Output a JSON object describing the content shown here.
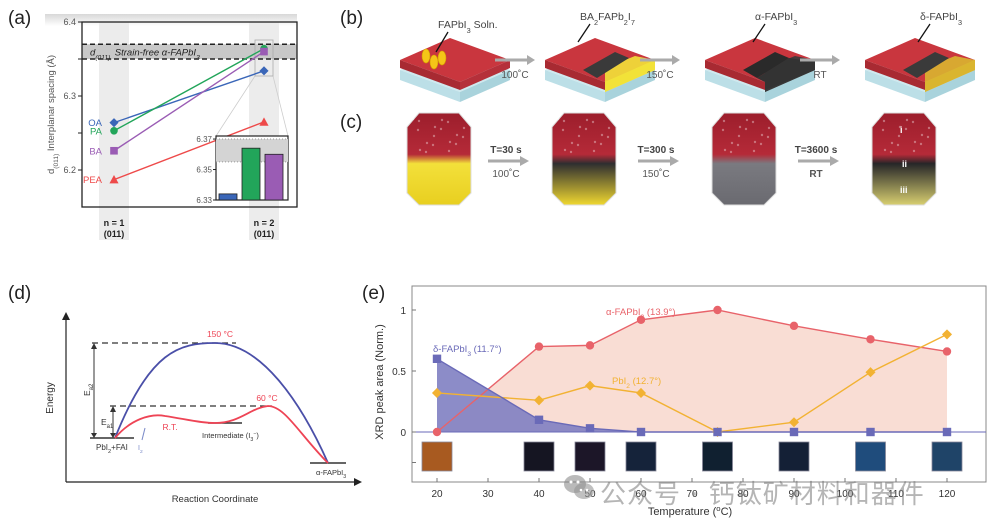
{
  "panel_labels": {
    "a": "(a)",
    "b": "(b)",
    "c": "(c)",
    "d": "(d)",
    "e": "(e)"
  },
  "chart_data": [
    {
      "id": "a",
      "type": "line",
      "title": "",
      "ylabel": "d(011) Interplanar spacing (Å)",
      "ylabel_main": "Interplanar spacing (Å)",
      "ylabel_sub": "d(011)",
      "ylim": [
        6.15,
        6.4
      ],
      "yticks": [
        6.2,
        6.3,
        6.4
      ],
      "ytick_labels": [
        "6.2",
        "6.3",
        "6.4"
      ],
      "categories": [
        "n = 1\n(011)",
        "n = 2\n(011)"
      ],
      "cat_line1": [
        "n = 1",
        "n = 2"
      ],
      "cat_line2": [
        "(011)",
        "(011)"
      ],
      "band": {
        "label": "Strain-free α-FAPbI3",
        "label_main": "Strain-free α-FAPbI",
        "label_prefix": "d",
        "label_sub": "(011),",
        "range": [
          6.35,
          6.37
        ]
      },
      "series": [
        {
          "name": "OA",
          "color": "#3a66b8",
          "marker": "diamond",
          "values": [
            6.264,
            6.334
          ]
        },
        {
          "name": "PA",
          "color": "#22a55a",
          "marker": "circle",
          "values": [
            6.253,
            6.364
          ]
        },
        {
          "name": "BA",
          "color": "#9a5cb4",
          "marker": "square",
          "values": [
            6.226,
            6.36
          ]
        },
        {
          "name": "PEA",
          "color": "#ee4a4a",
          "marker": "triangle",
          "values": [
            6.187,
            6.265
          ]
        }
      ],
      "inset": {
        "type": "bar",
        "ylim": [
          6.33,
          6.37
        ],
        "yticks": [
          6.33,
          6.35,
          6.37
        ],
        "ytick_labels": [
          "6.33",
          "6.35",
          "6.37"
        ],
        "band": [
          6.355,
          6.37
        ],
        "bars": [
          {
            "name": "OA",
            "value": 6.334,
            "color": "#3a66b8"
          },
          {
            "name": "PA",
            "value": 6.364,
            "color": "#22a55a"
          },
          {
            "name": "BA",
            "value": 6.36,
            "color": "#9a5cb4"
          }
        ]
      }
    },
    {
      "id": "d",
      "type": "line",
      "title": "",
      "xlabel": "Reaction Coordinate",
      "ylabel": "Energy",
      "annotations": {
        "high_temp": "150 °C",
        "mid_temp": "60 °C",
        "rt": "R.T.",
        "ea2": "E",
        "ea2_sub": "a2",
        "ea1": "E",
        "ea1_sub": "a1",
        "start": "PbI",
        "start_sub": "2",
        "start_suffix": "+FAI",
        "intermediate": "Intermediate (I",
        "intermediate_sub": "3",
        "intermediate_sup": "−",
        "intermediate_close": ")",
        "end": "α-FAPbI",
        "end_sub": "3",
        "arrow_label": "I",
        "arrow_label_sub": "2"
      },
      "series": [
        {
          "name": "150 °C pathway",
          "color": "#4a4fa8"
        },
        {
          "name": "R.T. / 60 °C pathway",
          "color": "#ee4455"
        }
      ]
    },
    {
      "id": "e",
      "type": "area",
      "title": "",
      "xlabel": "Temperature (°C)",
      "xlabel_text": "Temperature (",
      "xlabel_sup": "o",
      "xlabel_end": "C)",
      "ylabel": "XRD peak area (Norm.)",
      "xlim": [
        15,
        125
      ],
      "ylim": [
        -0.4,
        1.15
      ],
      "xticks": [
        20,
        30,
        40,
        50,
        60,
        70,
        80,
        90,
        100,
        110,
        120
      ],
      "xtick_labels": [
        "20",
        "30",
        "40",
        "50",
        "60",
        "70",
        "80",
        "90",
        "100",
        "110",
        "120"
      ],
      "yticks": [
        0,
        0.5,
        1
      ],
      "ytick_labels": [
        "0",
        "0.5",
        "1"
      ],
      "x": [
        20,
        40,
        50,
        60,
        75,
        90,
        105,
        120
      ],
      "series": [
        {
          "name": "α-FAPbI3 (13.9°)",
          "label_main": "α-FAPbI",
          "label_sub": "3",
          "label_tail": " (13.9°)",
          "color": "#e8636a",
          "fill": "#f8d9cf",
          "marker": "circle",
          "values": [
            0,
            0.7,
            0.71,
            0.92,
            1.0,
            0.87,
            0.76,
            0.66
          ]
        },
        {
          "name": "PbI2 (12.7°)",
          "label_main": "PbI",
          "label_sub": "2",
          "label_tail": " (12.7°)",
          "color": "#f2b233",
          "marker": "diamond",
          "values": [
            0.32,
            0.26,
            0.38,
            0.32,
            0,
            0.08,
            0.49,
            0.8
          ]
        },
        {
          "name": "δ-FAPbI3 (11.7°)",
          "label_main": "δ-FAPbI",
          "label_sub": "3",
          "label_tail": " (11.7°)",
          "color": "#6a6ab8",
          "fill": "#7f7fc2",
          "marker": "square",
          "values": [
            0.6,
            0.1,
            0.03,
            0,
            0,
            0,
            0,
            0
          ]
        }
      ],
      "film_swatches": [
        {
          "x": 20,
          "color": "#a85a20"
        },
        {
          "x": 40,
          "color": "#151522"
        },
        {
          "x": 50,
          "color": "#1c1628"
        },
        {
          "x": 60,
          "color": "#15233a"
        },
        {
          "x": 75,
          "color": "#102030"
        },
        {
          "x": 90,
          "color": "#142036"
        },
        {
          "x": 105,
          "color": "#1f4c7c"
        },
        {
          "x": 120,
          "color": "#1f4468"
        }
      ]
    }
  ],
  "schematic_b": {
    "steps": [
      {
        "label_main": "FAPbI",
        "label_sub": "3",
        "label_tail": " Soln.",
        "top": "#c9363e",
        "front": "transparent",
        "droplets": true
      },
      {
        "label_main": "BA",
        "label_sub": "2",
        "label_mid": "FAPb",
        "label_sub2": "2",
        "label_mid2": "I",
        "label_sub3": "7",
        "top": "#c9363e",
        "front": "#f2e238",
        "dark": true
      },
      {
        "label_main": "α-FAPbI",
        "label_sub": "3",
        "top": "#c9363e",
        "front": "#3a3a3a",
        "dark": true,
        "alldark": true
      },
      {
        "label_main": "δ-FAPbI",
        "label_sub": "3",
        "top": "#c9363e",
        "front": "#d9b530",
        "dark": true
      }
    ],
    "arrows": [
      {
        "top": "",
        "bottom": "100˚C"
      },
      {
        "top": "",
        "bottom": "150˚C"
      },
      {
        "top": "",
        "bottom": "RT"
      }
    ]
  },
  "photos_c": {
    "arrows": [
      {
        "top": "T=30 s",
        "bottom": "100˚C"
      },
      {
        "top": "T=300 s",
        "bottom": "150˚C"
      },
      {
        "top": "T=3600 s",
        "bottom": "RT"
      }
    ],
    "marks": [
      "i",
      "ii",
      "iii"
    ]
  },
  "watermark": "公众号 · 钙钛矿材料和器件"
}
